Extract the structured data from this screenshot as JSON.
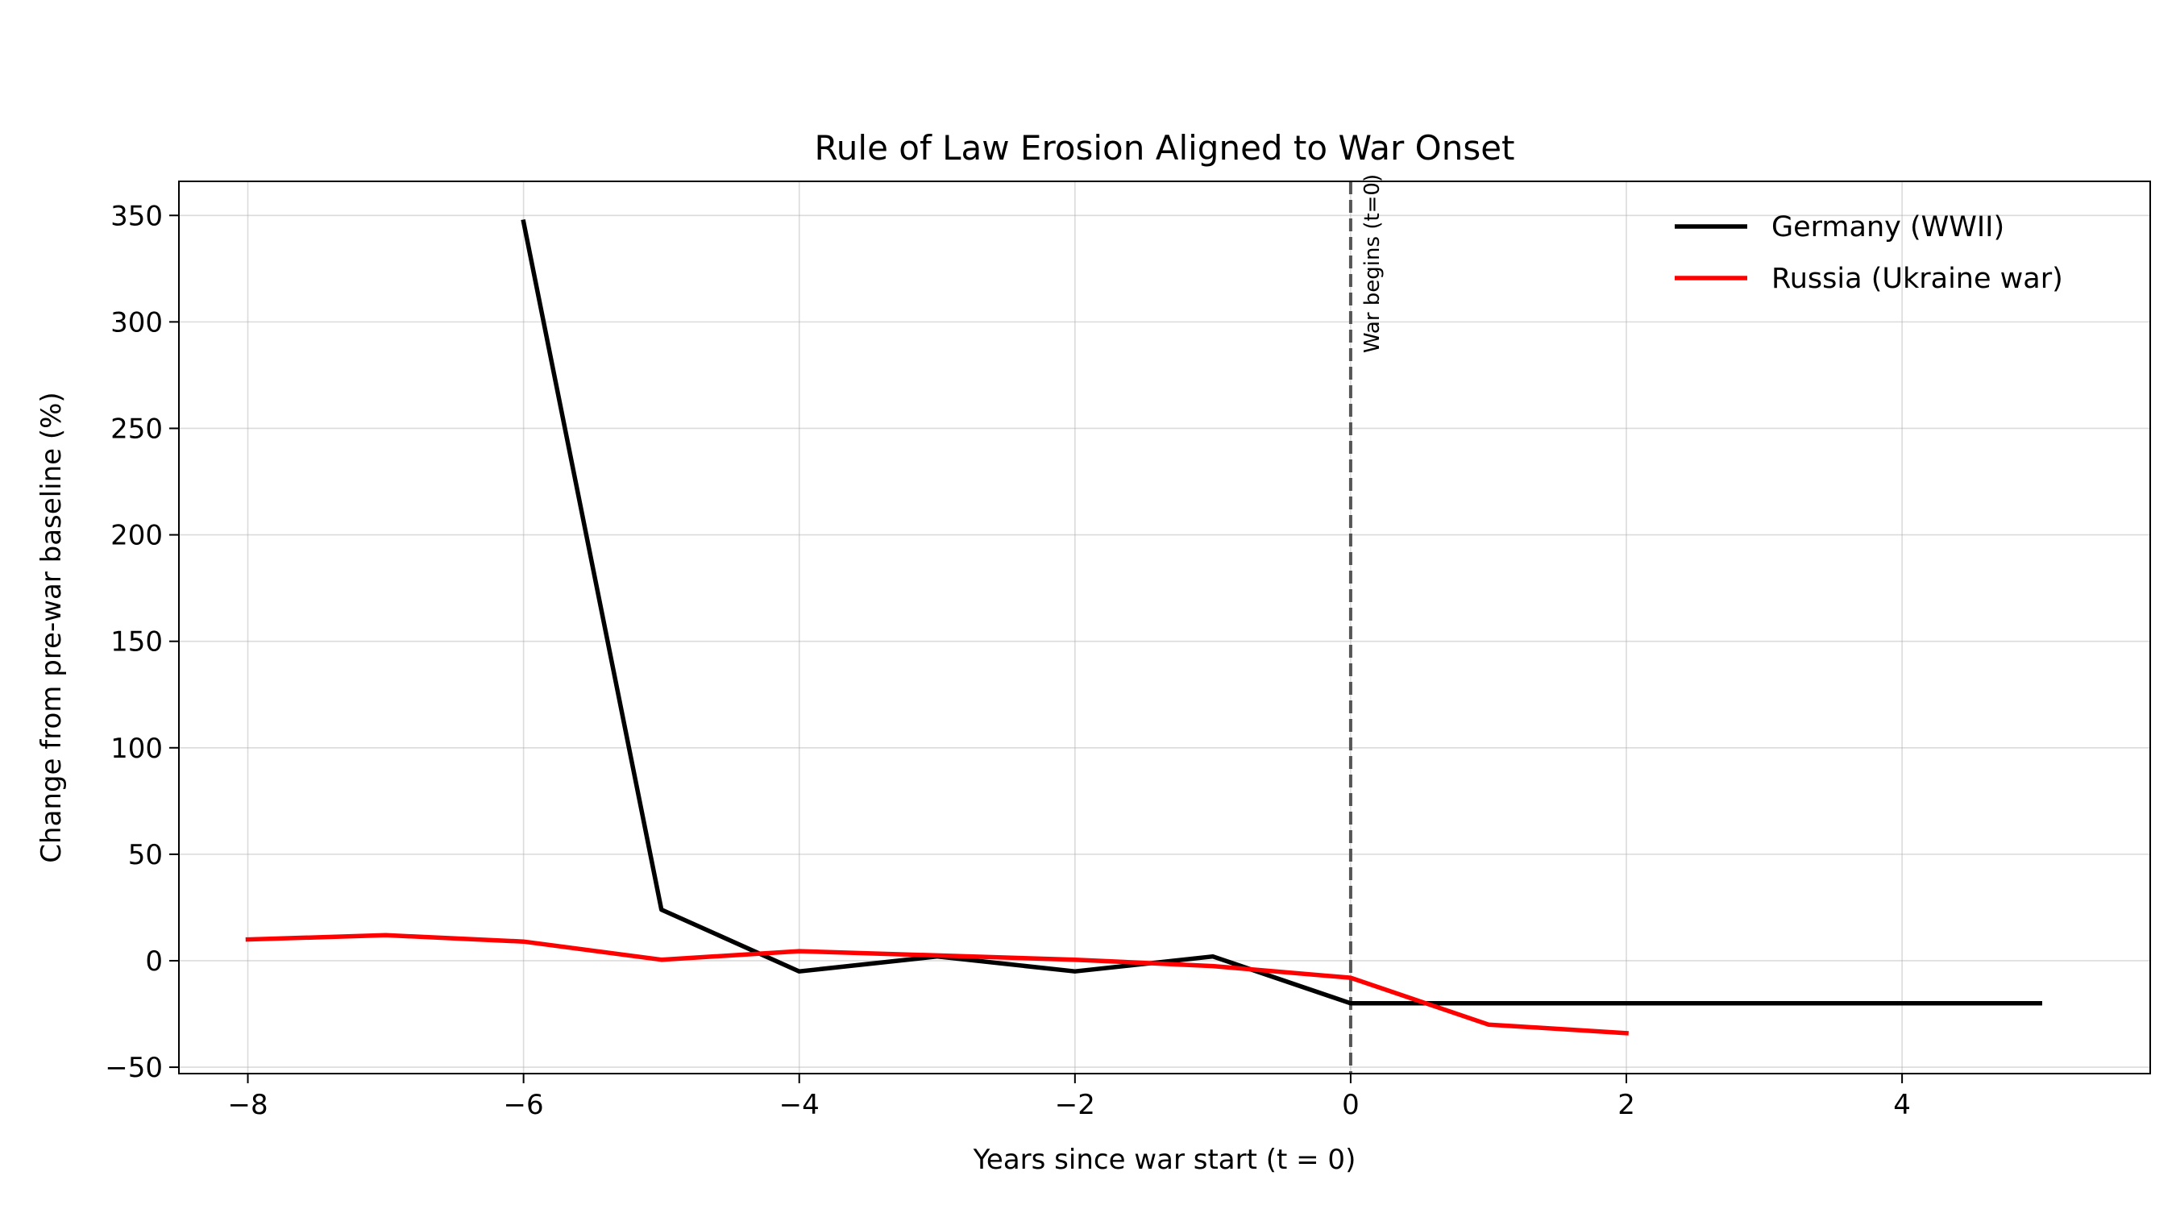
{
  "chart_data": {
    "type": "line",
    "title": "Rule of Law Erosion Aligned to War Onset",
    "xlabel": "Years since war start (t = 0)",
    "ylabel": "Change from pre-war baseline (%)",
    "xlim": [
      -8.5,
      5.8
    ],
    "ylim": [
      -53,
      366
    ],
    "xticks": [
      -8,
      -6,
      -4,
      -2,
      0,
      2,
      4
    ],
    "xtick_labels": [
      "−8",
      "−6",
      "−4",
      "−2",
      "0",
      "2",
      "4"
    ],
    "yticks": [
      -50,
      0,
      50,
      100,
      150,
      200,
      250,
      300,
      350
    ],
    "ytick_labels": [
      "−50",
      "0",
      "50",
      "100",
      "150",
      "200",
      "250",
      "300",
      "350"
    ],
    "grid": true,
    "legend_position": "top-right",
    "series": [
      {
        "name": "Germany (WWII)",
        "color": "#000000",
        "x": [
          -6,
          -5,
          -4,
          -3,
          -2,
          -1,
          0,
          1,
          2,
          3,
          4,
          5
        ],
        "y": [
          347,
          24,
          -5,
          2,
          -5,
          2,
          -20,
          -20,
          -20,
          -20,
          -20,
          -20
        ]
      },
      {
        "name": "Russia (Ukraine war)",
        "color": "#ff0000",
        "x": [
          -8,
          -7,
          -6,
          -5,
          -4,
          -3,
          -2,
          -1,
          0,
          1,
          2
        ],
        "y": [
          10,
          12,
          9,
          0.5,
          4.5,
          2.5,
          0.5,
          -2.5,
          -8,
          -30,
          -34
        ]
      }
    ],
    "annotations": [
      {
        "type": "vline",
        "x": 0,
        "color": "#555555",
        "style": "dashed",
        "label": "War begins (t=0)"
      }
    ]
  }
}
